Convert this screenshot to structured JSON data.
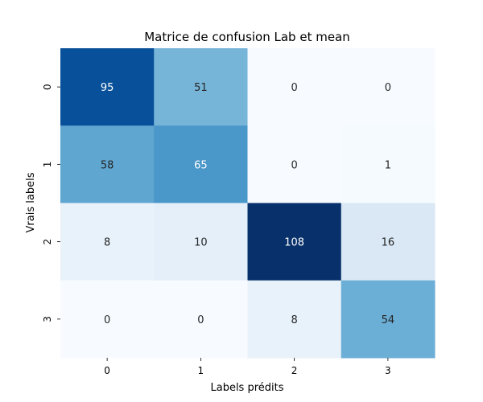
{
  "chart_data": {
    "type": "heatmap",
    "title": "Matrice de confusion Lab et mean",
    "xlabel": "Labels prédits",
    "ylabel": "Vrais labels",
    "x_categories": [
      "0",
      "1",
      "2",
      "3"
    ],
    "y_categories": [
      "0",
      "1",
      "2",
      "3"
    ],
    "values": [
      [
        95,
        51,
        0,
        0
      ],
      [
        58,
        65,
        0,
        1
      ],
      [
        8,
        10,
        108,
        16
      ],
      [
        0,
        0,
        8,
        54
      ]
    ],
    "colormap": "Blues",
    "vmin": 0,
    "vmax": 108,
    "colorbar": false,
    "grid": false
  }
}
